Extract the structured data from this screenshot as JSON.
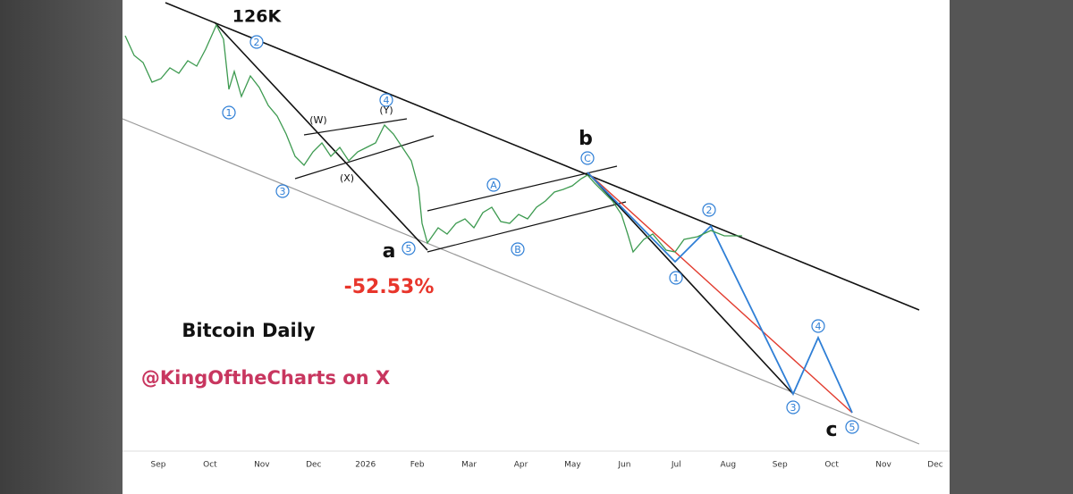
{
  "chart_data": {
    "type": "annotated-price-chart",
    "title": "Bitcoin Daily",
    "subtitle": "@KingOftheCharts on X",
    "categories": [
      "Sep",
      "Oct",
      "Nov",
      "Dec",
      "2026",
      "Feb",
      "Mar",
      "Apr",
      "May",
      "Jun",
      "Jul",
      "Aug",
      "Sep",
      "Oct",
      "Nov",
      "Dec"
    ],
    "annotations": [
      "126K",
      "a",
      "b",
      "c",
      "-52.53%",
      "(W)",
      "(Y)",
      "(X)"
    ],
    "waves": [
      "2",
      "1",
      "3",
      "4",
      "5",
      "A",
      "B",
      "C",
      "2",
      "1",
      "3",
      "4",
      "5"
    ]
  }
}
